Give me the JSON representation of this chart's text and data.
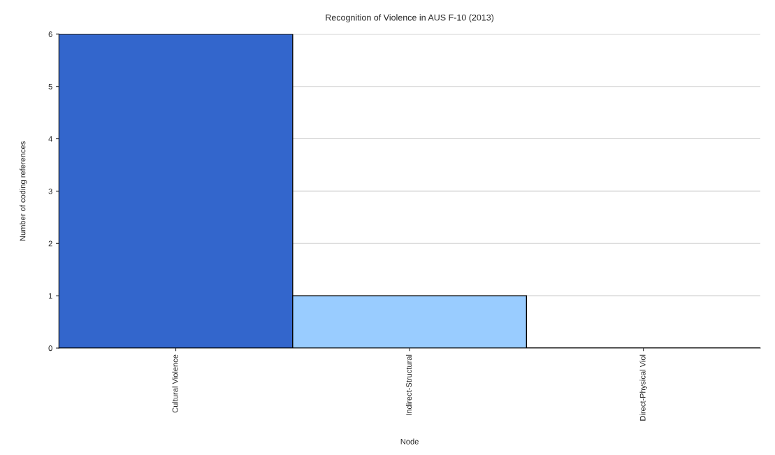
{
  "chart_data": {
    "type": "bar",
    "title": "Recognition of Violence in AUS F-10 (2013)",
    "xlabel": "Node",
    "ylabel": "Number of coding references",
    "categories": [
      "Cultural Violence",
      "Indirect-Structural",
      "Direct-Physical Viol"
    ],
    "values": [
      6,
      1,
      0
    ],
    "colors": [
      "#3366cc",
      "#99ccff",
      "#000000"
    ],
    "ylim": [
      0,
      6
    ],
    "yticks": [
      0,
      1,
      2,
      3,
      4,
      5,
      6
    ],
    "grid": "y"
  }
}
